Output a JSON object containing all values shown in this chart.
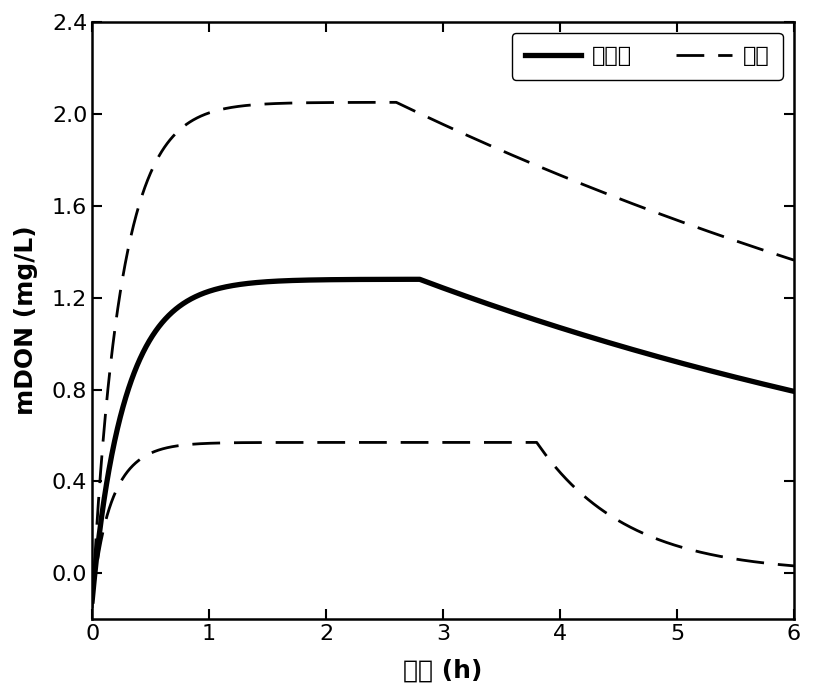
{
  "title": "",
  "xlabel": "时间 (h)",
  "ylabel": "mDON (mg/L)",
  "xlim": [
    0,
    6
  ],
  "ylim": [
    -0.2,
    2.4
  ],
  "xticks": [
    0,
    1,
    2,
    3,
    4,
    5,
    6
  ],
  "yticks": [
    0.0,
    0.4,
    0.8,
    1.2,
    1.6,
    2.0,
    2.4
  ],
  "legend_labels": [
    "模拟值",
    "误差"
  ],
  "background_color": "#ffffff",
  "line_color": "#000000",
  "sim_linewidth": 3.8,
  "err_linewidth": 2.0
}
